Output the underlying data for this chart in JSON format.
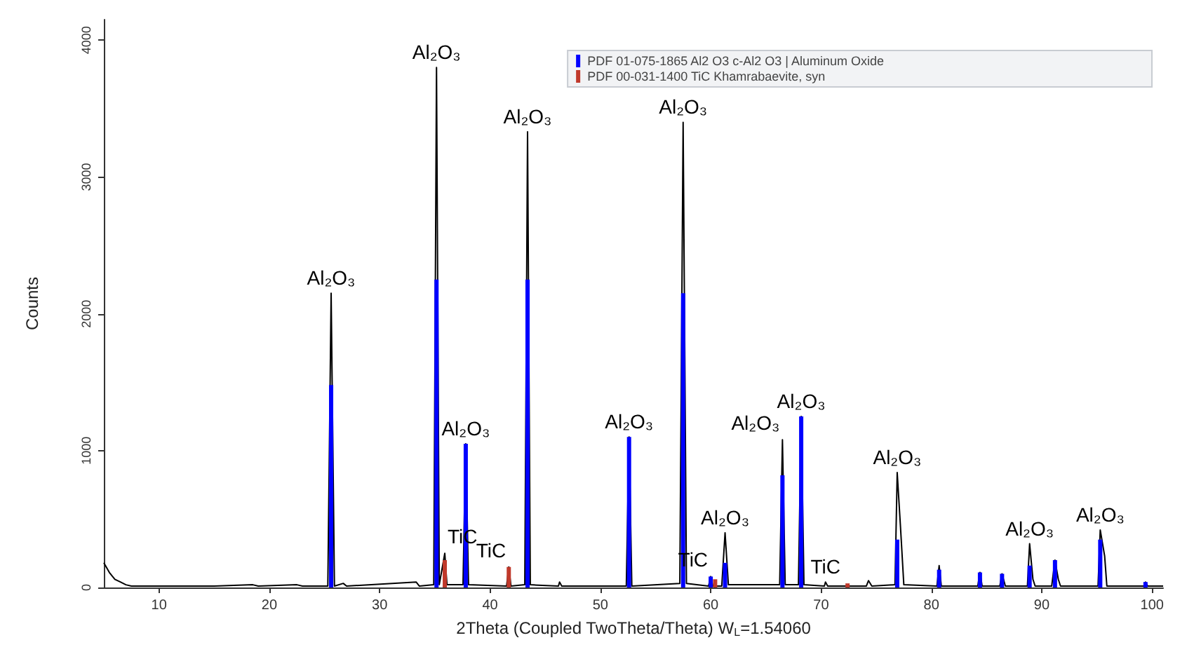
{
  "chart_data": {
    "type": "line",
    "xlabel": "2Theta (Coupled TwoTheta/Theta) W$_{L}$=1.54060",
    "ylabel": "Counts",
    "xlim": [
      5,
      101
    ],
    "xticks": [
      10,
      20,
      30,
      40,
      50,
      60,
      70,
      80,
      90,
      100
    ],
    "ylim": [
      0,
      4150
    ],
    "yticks": [
      0,
      1000,
      2000,
      3000,
      4000
    ],
    "grid": false,
    "legend": "top right",
    "marker": "none",
    "line_style": "solid",
    "series": [
      {
        "color": "#000000",
        "x": [
          5,
          5.5,
          6,
          6.5,
          7,
          7.5,
          8,
          15,
          18.5,
          19,
          22.5,
          23,
          25.3,
          25.6,
          25.9,
          26.7,
          27,
          33.3,
          33.6,
          34.9,
          35.15,
          35.4,
          35.9,
          36.1,
          37.55,
          37.8,
          38.05,
          41.5,
          41.7,
          41.9,
          43.15,
          43.4,
          43.65,
          46.2,
          46.3,
          46.5,
          52.35,
          52.6,
          52.85,
          57.2,
          57.5,
          57.8,
          59.8,
          60,
          60.2,
          61,
          61.3,
          61.6,
          66.25,
          66.5,
          66.75,
          67.95,
          68.2,
          68.45,
          70.3,
          70.4,
          70.6,
          74.1,
          74.3,
          74.6,
          76.7,
          76.9,
          77.2,
          77.5,
          80.5,
          80.7,
          80.9,
          84.2,
          84.4,
          84.6,
          86.2,
          86.4,
          86.7,
          88.7,
          88.9,
          89.2,
          89.4,
          90.9,
          91.2,
          91.5,
          91.7,
          95.1,
          95.3,
          95.7,
          95.9,
          99.3,
          99.4,
          99.6,
          101
        ],
        "values": [
          180,
          110,
          60,
          40,
          20,
          10,
          10,
          10,
          20,
          10,
          20,
          10,
          10,
          2150,
          10,
          30,
          10,
          40,
          10,
          20,
          3800,
          20,
          250,
          20,
          20,
          1050,
          20,
          10,
          150,
          10,
          20,
          3330,
          20,
          10,
          40,
          10,
          10,
          1100,
          10,
          30,
          3400,
          30,
          10,
          80,
          10,
          10,
          400,
          20,
          20,
          1080,
          20,
          20,
          1250,
          20,
          10,
          40,
          10,
          10,
          50,
          10,
          20,
          840,
          440,
          20,
          10,
          160,
          10,
          10,
          110,
          10,
          10,
          100,
          10,
          10,
          320,
          60,
          10,
          10,
          200,
          60,
          10,
          10,
          420,
          230,
          10,
          10,
          40,
          10,
          10
        ]
      },
      {
        "type": "bar",
        "name": "PDF 01-075-1865 Al2 O3 c-Al2 O3 | Aluminum Oxide",
        "color": "#0000ff",
        "x": [
          25.6,
          35.15,
          37.8,
          43.4,
          52.6,
          57.5,
          60,
          61.3,
          66.5,
          68.2,
          76.9,
          80.7,
          84.4,
          86.4,
          88.9,
          91.2,
          95.3,
          99.4
        ],
        "values": [
          1480,
          2250,
          1050,
          2250,
          1100,
          2150,
          80,
          180,
          820,
          1250,
          350,
          130,
          110,
          100,
          160,
          200,
          350,
          40
        ]
      },
      {
        "type": "bar",
        "name": "PDF 00-031-1400 TiC Khamrabaevite, syn",
        "color": "#c0392b",
        "x": [
          35.9,
          41.7,
          60.4,
          72.4
        ],
        "values": [
          200,
          150,
          60,
          30
        ]
      }
    ],
    "annotations": [
      {
        "text": "Al₂O₃",
        "x": 25.6,
        "y": 2150
      },
      {
        "text": "Al₂O₃",
        "x": 35.15,
        "y": 3800
      },
      {
        "text": "Al₂O₃",
        "x": 43.4,
        "y": 3330
      },
      {
        "text": "Al₂O₃",
        "x": 57.5,
        "y": 3400
      },
      {
        "text": "Al₂O₃",
        "x": 37.8,
        "y": 1050
      },
      {
        "text": "Al₂O₃",
        "x": 52.6,
        "y": 1100
      },
      {
        "text": "Al₂O₃",
        "x": 61.3,
        "y": 400
      },
      {
        "text": "Al₂O₃",
        "x": 66.5,
        "y": 1080
      },
      {
        "text": "Al₂O₃",
        "x": 68.2,
        "y": 1250
      },
      {
        "text": "Al₂O₃",
        "x": 76.9,
        "y": 840
      },
      {
        "text": "Al₂O₃",
        "x": 88.9,
        "y": 320
      },
      {
        "text": "Al₂O₃",
        "x": 95.3,
        "y": 420
      },
      {
        "text": "TiC",
        "x": 35.9,
        "y": 250
      },
      {
        "text": "TiC",
        "x": 41.7,
        "y": 150
      },
      {
        "text": "TiC",
        "x": 60.0,
        "y": 80
      },
      {
        "text": "TiC",
        "x": 70.4,
        "y": 40
      }
    ]
  }
}
